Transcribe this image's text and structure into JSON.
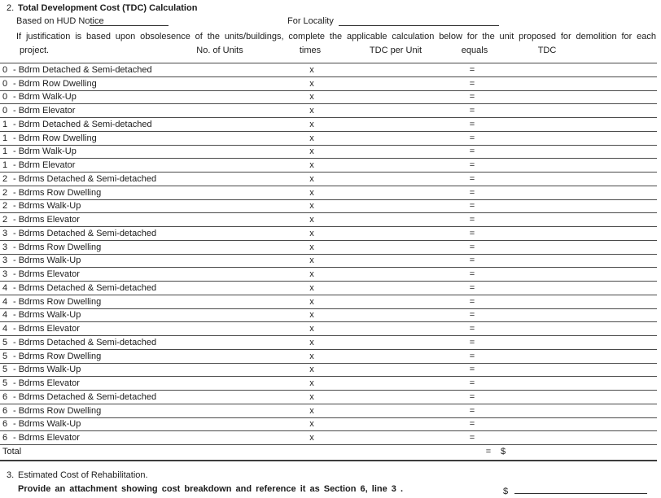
{
  "section2": {
    "number": "2.",
    "title": "Total Development Cost (TDC) Calculation",
    "based_on_label": "Based on HUD Notice",
    "based_on_value": "",
    "for_locality_label": "For Locality",
    "for_locality_value": "",
    "instruction_line1": "If justification is based upon obsolesence of the units/buildings, complete the applicable calculation below for the unit proposed for demolition for each",
    "instruction_line2": "project."
  },
  "table": {
    "headers": {
      "no_of_units": "No. of Units",
      "times": "times",
      "tdc_per_unit": "TDC per Unit",
      "equals": "equals",
      "tdc": "TDC"
    },
    "times_symbol": "x",
    "equals_symbol": "=",
    "rows": [
      {
        "bedrooms": "0",
        "type": "- Bdrm Detached & Semi-detached",
        "no_of_units": "",
        "tdc_per_unit": "",
        "tdc": ""
      },
      {
        "bedrooms": "0",
        "type": "- Bdrm Row Dwelling",
        "no_of_units": "",
        "tdc_per_unit": "",
        "tdc": ""
      },
      {
        "bedrooms": "0",
        "type": "- Bdrm Walk-Up",
        "no_of_units": "",
        "tdc_per_unit": "",
        "tdc": ""
      },
      {
        "bedrooms": "0",
        "type": "- Bdrm Elevator",
        "no_of_units": "",
        "tdc_per_unit": "",
        "tdc": ""
      },
      {
        "bedrooms": "1",
        "type": "- Bdrm Detached & Semi-detached",
        "no_of_units": "",
        "tdc_per_unit": "",
        "tdc": ""
      },
      {
        "bedrooms": "1",
        "type": "- Bdrm Row Dwelling",
        "no_of_units": "",
        "tdc_per_unit": "",
        "tdc": ""
      },
      {
        "bedrooms": "1",
        "type": "- Bdrm Walk-Up",
        "no_of_units": "",
        "tdc_per_unit": "",
        "tdc": ""
      },
      {
        "bedrooms": "1",
        "type": "- Bdrm Elevator",
        "no_of_units": "",
        "tdc_per_unit": "",
        "tdc": ""
      },
      {
        "bedrooms": "2",
        "type": "- Bdrms Detached & Semi-detached",
        "no_of_units": "",
        "tdc_per_unit": "",
        "tdc": ""
      },
      {
        "bedrooms": "2",
        "type": "- Bdrms Row Dwelling",
        "no_of_units": "",
        "tdc_per_unit": "",
        "tdc": ""
      },
      {
        "bedrooms": "2",
        "type": "- Bdrms Walk-Up",
        "no_of_units": "",
        "tdc_per_unit": "",
        "tdc": ""
      },
      {
        "bedrooms": "2",
        "type": "- Bdrms Elevator",
        "no_of_units": "",
        "tdc_per_unit": "",
        "tdc": ""
      },
      {
        "bedrooms": "3",
        "type": "- Bdrms Detached & Semi-detached",
        "no_of_units": "",
        "tdc_per_unit": "",
        "tdc": ""
      },
      {
        "bedrooms": "3",
        "type": "- Bdrms Row Dwelling",
        "no_of_units": "",
        "tdc_per_unit": "",
        "tdc": ""
      },
      {
        "bedrooms": "3",
        "type": "- Bdrms Walk-Up",
        "no_of_units": "",
        "tdc_per_unit": "",
        "tdc": ""
      },
      {
        "bedrooms": "3",
        "type": "- Bdrms Elevator",
        "no_of_units": "",
        "tdc_per_unit": "",
        "tdc": ""
      },
      {
        "bedrooms": "4",
        "type": "- Bdrms Detached & Semi-detached",
        "no_of_units": "",
        "tdc_per_unit": "",
        "tdc": ""
      },
      {
        "bedrooms": "4",
        "type": "- Bdrms Row Dwelling",
        "no_of_units": "",
        "tdc_per_unit": "",
        "tdc": ""
      },
      {
        "bedrooms": "4",
        "type": "- Bdrms Walk-Up",
        "no_of_units": "",
        "tdc_per_unit": "",
        "tdc": ""
      },
      {
        "bedrooms": "4",
        "type": "- Bdrms Elevator",
        "no_of_units": "",
        "tdc_per_unit": "",
        "tdc": ""
      },
      {
        "bedrooms": "5",
        "type": "- Bdrms Detached & Semi-detached",
        "no_of_units": "",
        "tdc_per_unit": "",
        "tdc": ""
      },
      {
        "bedrooms": "5",
        "type": "- Bdrms Row Dwelling",
        "no_of_units": "",
        "tdc_per_unit": "",
        "tdc": ""
      },
      {
        "bedrooms": "5",
        "type": "- Bdrms Walk-Up",
        "no_of_units": "",
        "tdc_per_unit": "",
        "tdc": ""
      },
      {
        "bedrooms": "5",
        "type": "- Bdrms Elevator",
        "no_of_units": "",
        "tdc_per_unit": "",
        "tdc": ""
      },
      {
        "bedrooms": "6",
        "type": "- Bdrms Detached & Semi-detached",
        "no_of_units": "",
        "tdc_per_unit": "",
        "tdc": ""
      },
      {
        "bedrooms": "6",
        "type": "- Bdrms Row Dwelling",
        "no_of_units": "",
        "tdc_per_unit": "",
        "tdc": ""
      },
      {
        "bedrooms": "6",
        "type": "- Bdrms Walk-Up",
        "no_of_units": "",
        "tdc_per_unit": "",
        "tdc": ""
      },
      {
        "bedrooms": "6",
        "type": "- Bdrms Elevator",
        "no_of_units": "",
        "tdc_per_unit": "",
        "tdc": ""
      }
    ],
    "total": {
      "label": "Total",
      "equals_symbol": "=",
      "currency": "$",
      "value": ""
    }
  },
  "section3": {
    "number": "3.",
    "title": "Estimated Cost of Rehabilitation.",
    "instruction": "Provide an attachment showing cost breakdown and reference it as Section 6, line 3 .",
    "currency": "$",
    "value": ""
  }
}
